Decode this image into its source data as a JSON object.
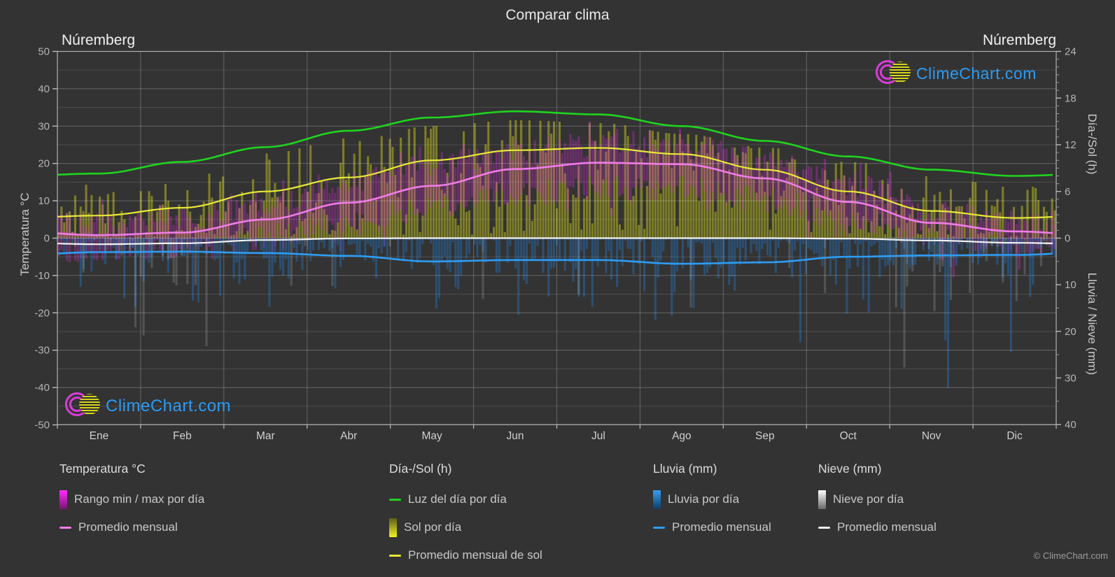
{
  "title": "Comparar clima",
  "station_left": "Núremberg",
  "station_right": "Núremberg",
  "watermark": "ClimeChart.com",
  "copyright": "© ClimeChart.com",
  "axes": {
    "temp": {
      "label": "Temperatura °C",
      "min": -50,
      "max": 50,
      "ticks": [
        50,
        40,
        30,
        20,
        10,
        0,
        -10,
        -20,
        -30,
        -40,
        -50
      ]
    },
    "sun": {
      "label": "Día-/Sol (h)",
      "min": 0,
      "max": 24,
      "ticks": [
        24,
        18,
        12,
        6,
        0
      ]
    },
    "precip": {
      "label": "Lluvia / Nieve (mm)",
      "min": 0,
      "max": 40,
      "ticks": [
        10,
        20,
        30,
        40
      ],
      "inverted": true
    }
  },
  "chart_data": {
    "type": "bar",
    "subtype": "climate-daily-bars-with-monthly-average-lines",
    "categories": [
      "Ene",
      "Feb",
      "Mar",
      "Abr",
      "May",
      "Jun",
      "Jul",
      "Ago",
      "Sep",
      "Oct",
      "Nov",
      "Dic"
    ],
    "grid": true,
    "axis_ranges": {
      "temp_c": [
        -50,
        50
      ],
      "sun_h": [
        0,
        24
      ],
      "precip_mm": [
        0,
        40
      ],
      "precip_axis_points_down": true
    },
    "series": [
      {
        "name": "Luz del día por día",
        "role": "line",
        "unit": "h",
        "color": "#1fd41f",
        "values": [
          8.3,
          9.8,
          11.7,
          13.8,
          15.5,
          16.3,
          15.9,
          14.4,
          12.5,
          10.5,
          8.8,
          8.0
        ]
      },
      {
        "name": "Promedio mensual de sol",
        "role": "line",
        "unit": "h",
        "color": "#e8e838",
        "values": [
          2.9,
          3.9,
          6.0,
          7.8,
          10.0,
          11.3,
          11.6,
          10.8,
          8.8,
          6.0,
          3.5,
          2.6
        ]
      },
      {
        "name": "Sol por día",
        "role": "daily-bars",
        "unit": "h",
        "color": "#c8c81e",
        "monthly_avg": [
          2.9,
          3.9,
          6.0,
          7.8,
          10.0,
          11.3,
          11.6,
          10.8,
          8.8,
          6.0,
          3.5,
          2.6
        ]
      },
      {
        "name": "Promedio mensual (temperatura)",
        "role": "line",
        "unit": "°C",
        "color": "#f07ce8",
        "values": [
          0.8,
          1.5,
          5.0,
          9.5,
          14.0,
          18.5,
          20.2,
          19.8,
          16.0,
          9.7,
          4.1,
          1.8
        ]
      },
      {
        "name": "Rango min / max por día",
        "role": "daily-bars",
        "unit": "°C",
        "color": "#e02ce0",
        "monthly_min": [
          -3.5,
          -3.0,
          0.2,
          3.8,
          8.0,
          11.8,
          13.6,
          13.3,
          10.2,
          5.2,
          1.0,
          -2.0
        ],
        "monthly_max": [
          3.4,
          4.8,
          9.6,
          14.8,
          19.6,
          23.0,
          25.2,
          24.8,
          20.6,
          14.2,
          7.6,
          4.2
        ]
      },
      {
        "name": "Lluvia por día",
        "role": "daily-bars",
        "unit": "mm",
        "color": "#2478c8",
        "monthly_avg": [
          3.0,
          2.9,
          3.2,
          3.8,
          5.0,
          4.7,
          4.7,
          5.5,
          5.2,
          4.0,
          3.7,
          3.6
        ]
      },
      {
        "name": "Promedio mensual (lluvia)",
        "role": "line",
        "unit": "mm",
        "color": "#2e9df5",
        "values": [
          3.0,
          2.9,
          3.2,
          3.8,
          5.0,
          4.7,
          4.7,
          5.5,
          5.2,
          4.0,
          3.7,
          3.6
        ]
      },
      {
        "name": "Nieve por día",
        "role": "daily-bars",
        "unit": "mm",
        "color": "#d2d7dc",
        "monthly_avg": [
          1.3,
          1.1,
          0.4,
          0.05,
          0,
          0,
          0,
          0,
          0,
          0.1,
          0.5,
          1.0
        ]
      },
      {
        "name": "Promedio mensual (nieve)",
        "role": "line",
        "unit": "mm",
        "color": "#f2f2f2",
        "values": [
          1.3,
          1.1,
          0.4,
          0.05,
          0,
          0,
          0,
          0,
          0,
          0.1,
          0.5,
          1.0
        ]
      }
    ]
  },
  "legend": {
    "groups": [
      {
        "header": "Temperatura °C",
        "items": [
          {
            "icon": "swatch",
            "swatch": "magenta",
            "label": "Rango min / max por día"
          },
          {
            "icon": "dash",
            "color": "#f07ce8",
            "label": "Promedio mensual"
          }
        ]
      },
      {
        "header": "Día-/Sol (h)",
        "items": [
          {
            "icon": "dash",
            "color": "#1fd41f",
            "label": "Luz del día por día"
          },
          {
            "icon": "swatch",
            "swatch": "sun",
            "label": "Sol por día"
          },
          {
            "icon": "dash",
            "color": "#e8e838",
            "label": "Promedio mensual de sol"
          }
        ]
      },
      {
        "header": "Lluvia (mm)",
        "items": [
          {
            "icon": "swatch",
            "swatch": "rain",
            "label": "Lluvia por día"
          },
          {
            "icon": "dash",
            "color": "#2e9df5",
            "label": "Promedio mensual"
          }
        ]
      },
      {
        "header": "Nieve (mm)",
        "items": [
          {
            "icon": "swatch",
            "swatch": "snow",
            "label": "Nieve por día"
          },
          {
            "icon": "dash",
            "color": "#eeeeee",
            "label": "Promedio mensual"
          }
        ]
      }
    ]
  },
  "colors": {
    "background": "#333333",
    "grid": "#ffffff",
    "tick_text": "#b5b5b5",
    "month_text": "#cfcfcf",
    "logo_blue": "#2b9bf5",
    "logo_magenta": "#da3cda",
    "logo_yellow": "#d6d61e"
  }
}
